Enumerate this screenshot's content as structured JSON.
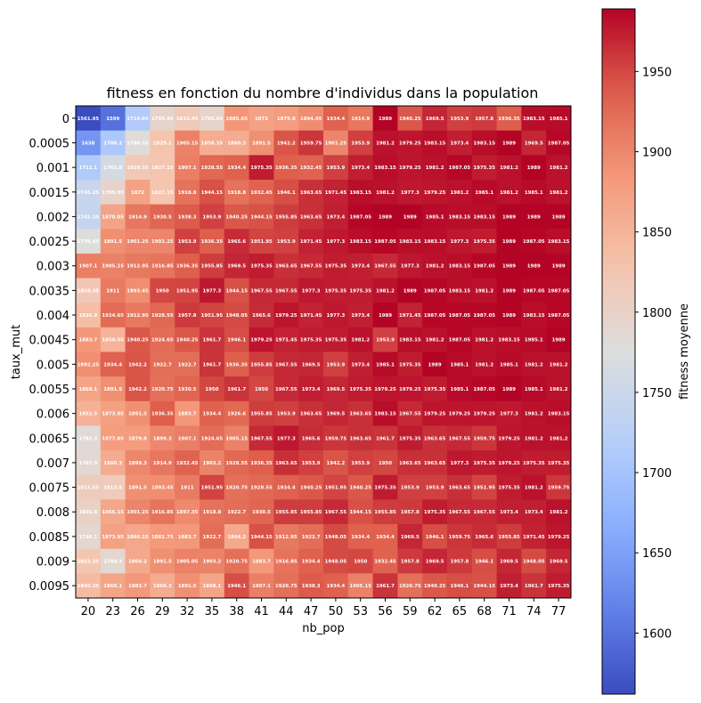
{
  "chart_data": {
    "type": "heatmap",
    "title": "fitness en fonction du nombre d'individus dans la population",
    "xlabel": "nb_pop",
    "ylabel": "taux_mut",
    "colorbar_label": "fitness moyenne",
    "colormap": "coolwarm",
    "color_range": [
      1561.95,
      1989.0
    ],
    "colorbar_ticks": [
      1600,
      1650,
      1700,
      1750,
      1800,
      1850,
      1900,
      1950
    ],
    "x_categories": [
      "20",
      "23",
      "26",
      "29",
      "32",
      "35",
      "38",
      "41",
      "44",
      "47",
      "50",
      "53",
      "56",
      "59",
      "62",
      "65",
      "68",
      "71",
      "74",
      "77"
    ],
    "y_categories": [
      "0",
      "0.0005",
      "0.001",
      "0.0015",
      "0.002",
      "0.0025",
      "0.003",
      "0.0035",
      "0.004",
      "0.0045",
      "0.005",
      "0.0055",
      "0.006",
      "0.0065",
      "0.007",
      "0.0075",
      "0.008",
      "0.0085",
      "0.009",
      "0.0095"
    ],
    "values": [
      [
        1561.95,
        1599.0,
        1714.05,
        1795.95,
        1815.45,
        1795.95,
        1885.65,
        1872.0,
        1879.8,
        1894.45,
        1934.4,
        1914.9,
        1989.0,
        1940.25,
        1969.5,
        1953.9,
        1957.8,
        1936.35,
        1983.15,
        1985.1
      ],
      [
        1638.0,
        1708.2,
        1780.35,
        1829.1,
        1905.15,
        1858.35,
        1860.3,
        1891.5,
        1942.2,
        1959.75,
        1901.25,
        1953.9,
        1981.2,
        1979.25,
        1983.15,
        1973.4,
        1983.15,
        1989.0,
        1969.5,
        1987.05
      ],
      [
        1712.1,
        1762.8,
        1819.35,
        1827.15,
        1907.1,
        1928.55,
        1934.4,
        1975.35,
        1936.35,
        1932.45,
        1953.9,
        1973.4,
        1983.15,
        1979.25,
        1981.2,
        1987.05,
        1975.35,
        1981.2,
        1989.0,
        1981.2
      ],
      [
        1745.25,
        1795.95,
        1872.0,
        1827.15,
        1918.8,
        1944.15,
        1918.8,
        1932.45,
        1946.1,
        1963.65,
        1971.45,
        1983.15,
        1981.2,
        1977.3,
        1979.25,
        1981.2,
        1985.1,
        1981.2,
        1985.1,
        1981.2
      ],
      [
        1741.35,
        1870.05,
        1914.9,
        1930.5,
        1938.3,
        1953.9,
        1940.25,
        1944.15,
        1955.85,
        1963.65,
        1973.4,
        1987.05,
        1989.0,
        1989.0,
        1985.1,
        1983.15,
        1983.15,
        1989.0,
        1989.0,
        1989.0
      ],
      [
        1776.45,
        1891.5,
        1901.25,
        1901.25,
        1953.9,
        1936.35,
        1965.6,
        1951.95,
        1953.9,
        1971.45,
        1977.3,
        1983.15,
        1987.05,
        1983.15,
        1983.15,
        1977.3,
        1975.35,
        1989.0,
        1987.05,
        1983.15
      ],
      [
        1907.1,
        1905.15,
        1912.95,
        1916.85,
        1936.35,
        1955.85,
        1969.5,
        1975.35,
        1963.65,
        1967.55,
        1975.35,
        1973.4,
        1967.55,
        1977.3,
        1981.2,
        1983.15,
        1987.05,
        1989.0,
        1989.0,
        1989.0
      ],
      [
        1819.35,
        1911.0,
        1893.45,
        1950.0,
        1951.95,
        1977.3,
        1944.15,
        1967.55,
        1967.55,
        1977.3,
        1975.35,
        1975.35,
        1981.2,
        1989.0,
        1987.05,
        1983.15,
        1981.2,
        1989.0,
        1987.05,
        1987.05
      ],
      [
        1836.9,
        1924.65,
        1912.95,
        1928.55,
        1957.8,
        1951.95,
        1948.05,
        1965.6,
        1979.25,
        1971.45,
        1977.3,
        1973.4,
        1989.0,
        1971.45,
        1987.05,
        1987.05,
        1987.05,
        1989.0,
        1983.15,
        1987.05
      ],
      [
        1883.7,
        1850.55,
        1940.25,
        1924.65,
        1940.25,
        1961.7,
        1946.1,
        1979.25,
        1971.45,
        1975.35,
        1975.35,
        1981.2,
        1953.9,
        1983.15,
        1981.2,
        1987.05,
        1981.2,
        1983.15,
        1985.1,
        1989.0
      ],
      [
        1892.25,
        1934.4,
        1942.2,
        1922.7,
        1922.7,
        1961.7,
        1936.35,
        1955.85,
        1967.55,
        1969.5,
        1953.9,
        1973.4,
        1985.1,
        1975.35,
        1989.0,
        1985.1,
        1981.2,
        1985.1,
        1981.2,
        1981.2
      ],
      [
        1868.1,
        1891.5,
        1942.2,
        1920.75,
        1930.5,
        1950.0,
        1961.7,
        1950.0,
        1967.55,
        1973.4,
        1969.5,
        1975.35,
        1979.25,
        1979.25,
        1975.35,
        1985.1,
        1987.05,
        1989.0,
        1985.1,
        1981.2
      ],
      [
        1852.5,
        1873.95,
        1891.5,
        1936.35,
        1883.7,
        1934.4,
        1926.6,
        1955.85,
        1953.9,
        1963.65,
        1969.5,
        1963.65,
        1983.15,
        1967.55,
        1979.25,
        1979.25,
        1979.25,
        1977.3,
        1981.2,
        1983.15
      ],
      [
        1782.3,
        1877.85,
        1879.8,
        1899.3,
        1907.1,
        1924.65,
        1905.15,
        1967.55,
        1977.3,
        1965.6,
        1959.75,
        1963.65,
        1961.7,
        1975.35,
        1963.65,
        1967.55,
        1959.75,
        1979.25,
        1981.2,
        1981.2
      ],
      [
        1787.9,
        1860.3,
        1899.3,
        1914.9,
        1932.45,
        1903.2,
        1928.55,
        1936.35,
        1963.65,
        1953.9,
        1942.2,
        1953.9,
        1950.0,
        1963.65,
        1963.65,
        1977.3,
        1975.35,
        1979.25,
        1975.35,
        1975.35
      ],
      [
        1811.55,
        1813.5,
        1891.5,
        1893.45,
        1911.0,
        1951.95,
        1920.75,
        1928.55,
        1934.4,
        1940.25,
        1951.95,
        1940.25,
        1975.35,
        1953.9,
        1953.9,
        1963.65,
        1951.95,
        1975.35,
        1981.2,
        1959.75
      ],
      [
        1801.8,
        1866.15,
        1901.25,
        1916.85,
        1897.35,
        1918.8,
        1922.7,
        1930.5,
        1955.85,
        1955.85,
        1967.55,
        1944.15,
        1955.85,
        1957.8,
        1975.35,
        1967.55,
        1967.55,
        1973.4,
        1973.4,
        1981.2
      ],
      [
        1790.1,
        1873.95,
        1866.15,
        1881.75,
        1883.7,
        1922.7,
        1864.2,
        1944.15,
        1912.95,
        1922.7,
        1948.05,
        1934.4,
        1934.4,
        1969.5,
        1946.1,
        1959.75,
        1965.6,
        1955.85,
        1971.45,
        1979.25
      ],
      [
        1823.25,
        1788.3,
        1864.2,
        1891.5,
        1905.05,
        1903.2,
        1920.75,
        1883.7,
        1916.85,
        1934.4,
        1948.05,
        1950.0,
        1932.45,
        1957.8,
        1969.5,
        1957.8,
        1946.1,
        1969.5,
        1948.05,
        1969.5
      ],
      [
        1840.35,
        1868.1,
        1883.7,
        1860.3,
        1891.5,
        1868.1,
        1946.1,
        1907.1,
        1920.75,
        1938.3,
        1934.4,
        1905.15,
        1961.7,
        1920.75,
        1940.25,
        1946.1,
        1944.15,
        1973.4,
        1961.7,
        1975.35
      ]
    ]
  }
}
